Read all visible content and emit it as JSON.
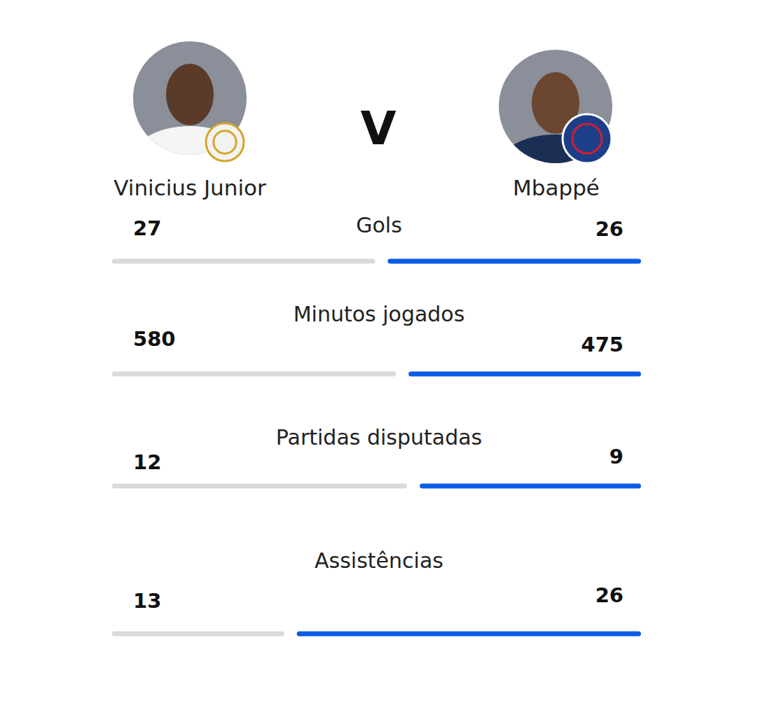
{
  "chart_data": {
    "type": "comparison",
    "title": "V",
    "categories": [
      "Gols",
      "Minutos jogados",
      "Partidas disputadas",
      "Assistências"
    ],
    "series": [
      {
        "name": "Vinicius Junior",
        "color": "#d9d9d9",
        "values": [
          27,
          580,
          12,
          13
        ]
      },
      {
        "name": "Mbappé",
        "color": "#0a5ce6",
        "values": [
          26,
          475,
          9,
          26
        ]
      }
    ],
    "data_labels": true
  }
}
